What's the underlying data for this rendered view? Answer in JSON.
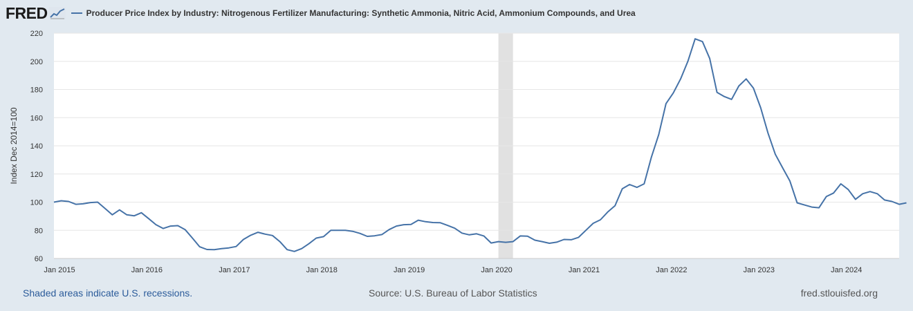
{
  "header": {
    "logo_text": "FRED",
    "logo_icon": "fred-chart-icon"
  },
  "chart_data": {
    "type": "line",
    "title": "",
    "xlabel": "",
    "ylabel": "Index Dec 2014=100",
    "ylim": [
      60,
      220
    ],
    "yticks": [
      60,
      80,
      100,
      120,
      140,
      160,
      180,
      200,
      220
    ],
    "xlim": [
      "2015-01",
      "2024-09"
    ],
    "xticks": [
      {
        "date": "2015-01",
        "label": "Jan 2015"
      },
      {
        "date": "2016-01",
        "label": "Jan 2016"
      },
      {
        "date": "2017-01",
        "label": "Jan 2017"
      },
      {
        "date": "2018-01",
        "label": "Jan 2018"
      },
      {
        "date": "2019-01",
        "label": "Jan 2019"
      },
      {
        "date": "2020-01",
        "label": "Jan 2020"
      },
      {
        "date": "2021-01",
        "label": "Jan 2021"
      },
      {
        "date": "2022-01",
        "label": "Jan 2022"
      },
      {
        "date": "2023-01",
        "label": "Jan 2023"
      },
      {
        "date": "2024-01",
        "label": "Jan 2024"
      }
    ],
    "grid": "horizontal",
    "legend": "top-left",
    "recession_shading": [
      {
        "start": "2020-02",
        "end": "2020-04"
      }
    ],
    "series": [
      {
        "name": "Producer Price Index by Industry: Nitrogenous Fertilizer Manufacturing: Synthetic Ammonia, Nitric Acid, Ammonium Compounds, and Urea",
        "color": "#4572a7",
        "start": "2015-01",
        "values": [
          100.0,
          101.0,
          100.5,
          98.5,
          98.8,
          99.7,
          100.0,
          95.6,
          91.0,
          94.5,
          91.0,
          90.3,
          92.5,
          88.3,
          84.0,
          81.3,
          83.0,
          83.3,
          80.5,
          74.5,
          68.3,
          66.4,
          66.3,
          67.0,
          67.5,
          68.5,
          73.5,
          76.5,
          78.6,
          77.3,
          76.3,
          72.0,
          66.3,
          65.0,
          67.0,
          70.5,
          74.5,
          75.5,
          80.0,
          80.0,
          80.0,
          79.3,
          77.8,
          75.7,
          76.1,
          77.0,
          80.5,
          83.0,
          84.0,
          84.2,
          87.2,
          86.1,
          85.5,
          85.4,
          83.5,
          81.5,
          78.0,
          76.8,
          77.5,
          76.0,
          71.0,
          72.0,
          71.5,
          72.0,
          76.0,
          75.8,
          73.0,
          72.0,
          70.8,
          71.6,
          73.5,
          73.3,
          75.0,
          80.0,
          85.0,
          87.5,
          93.0,
          97.5,
          109.5,
          112.5,
          110.5,
          113.0,
          132.0,
          148.0,
          170.0,
          177.5,
          187.5,
          200.0,
          216.0,
          214.0,
          202.0,
          178.0,
          175.0,
          173.0,
          182.5,
          187.5,
          181.0,
          167.0,
          149.0,
          134.0,
          124.5,
          115.0,
          99.5,
          98.0,
          96.5,
          96.0,
          104.0,
          106.5,
          113.0,
          109.0,
          102.0,
          106.0,
          107.5,
          106.0,
          101.5,
          100.5,
          98.5,
          99.5
        ]
      }
    ]
  },
  "footer": {
    "recession_note": "Shaded areas indicate U.S. recessions.",
    "source": "Source: U.S. Bureau of Labor Statistics",
    "site": "fred.stlouisfed.org"
  }
}
